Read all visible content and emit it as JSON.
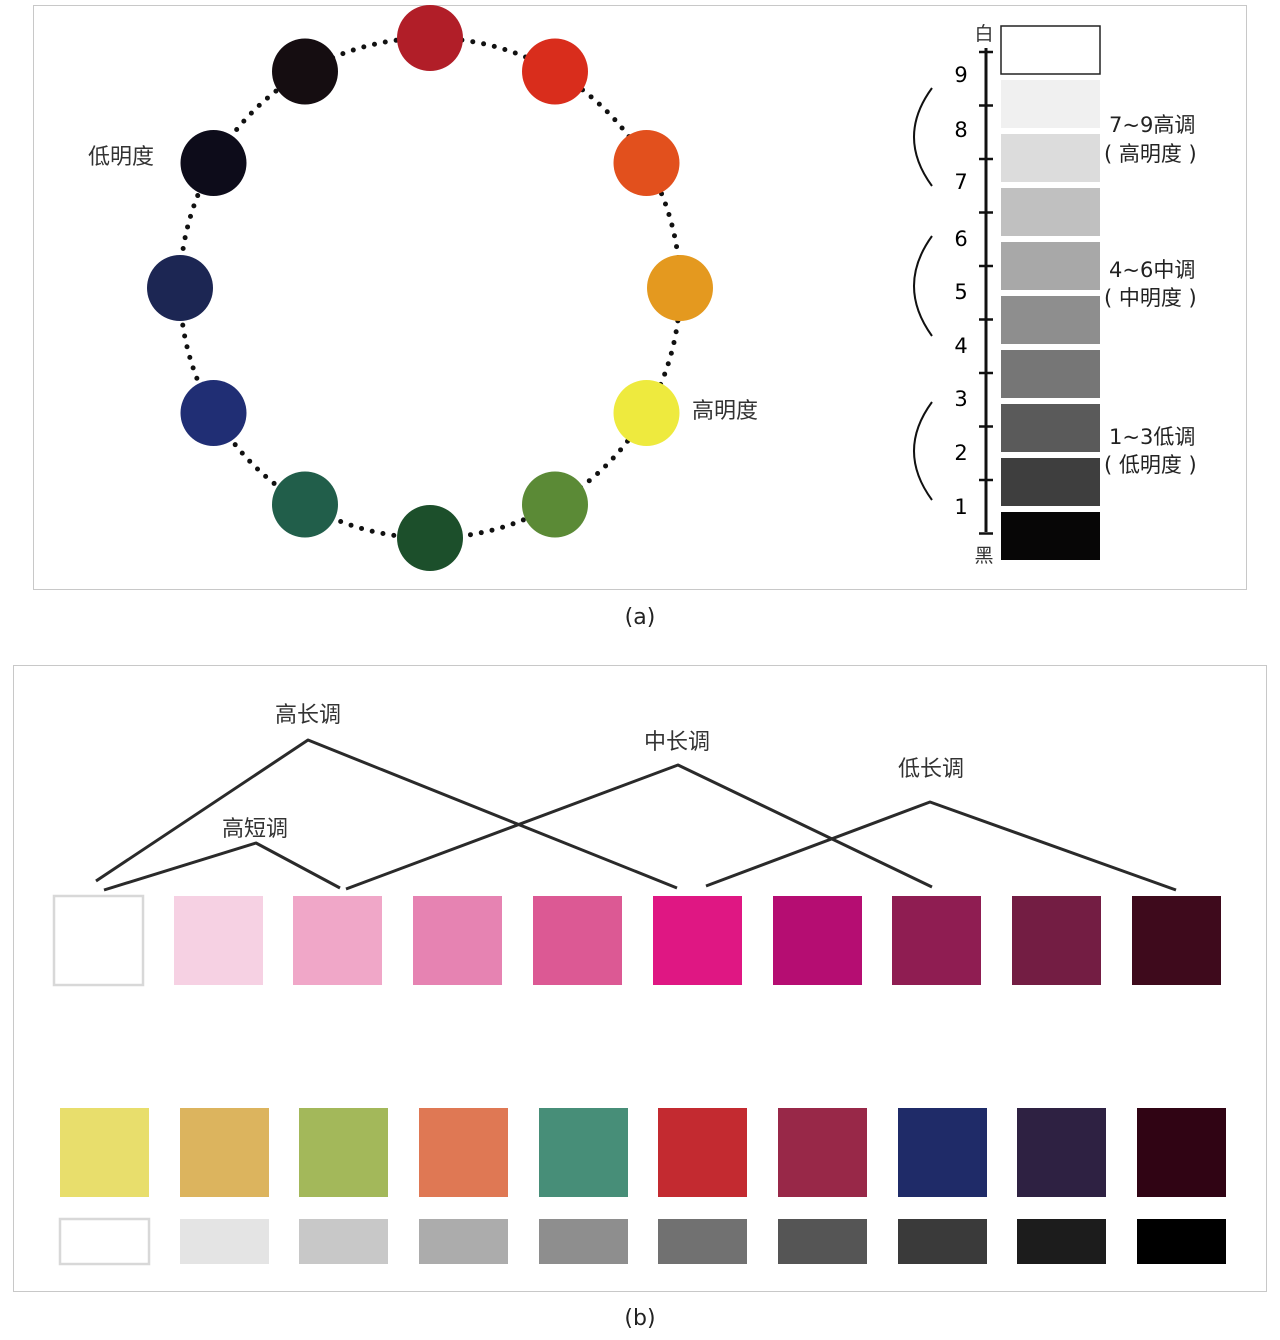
{
  "panel_a": {
    "caption": "(a)",
    "wheel": {
      "colors": [
        "#b11e28",
        "#d92d1c",
        "#e2501d",
        "#e4991f",
        "#eeea3e",
        "#5b8a36",
        "#1c4f2b",
        "#215e4a",
        "#202e74",
        "#1c2653",
        "#0d0c1a",
        "#150d11"
      ],
      "label_low": "低明度",
      "label_high": "高明度"
    },
    "scale": {
      "top_label": "白",
      "bottom_label": "黑",
      "numbers": [
        "9",
        "8",
        "7",
        "6",
        "5",
        "4",
        "3",
        "2",
        "1"
      ],
      "swatches": [
        "#ffffff",
        "#f0f0f0",
        "#dcdcdc",
        "#c0c0c0",
        "#a8a8a8",
        "#8e8e8e",
        "#767676",
        "#5a5a5a",
        "#3e3e3e",
        "#070606"
      ],
      "groups": [
        {
          "line1": "7~9高调",
          "line2": "( 高明度 )"
        },
        {
          "line1": "4~6中调",
          "line2": "( 中明度 )"
        },
        {
          "line1": "1~3低调",
          "line2": "( 低明度 )"
        }
      ]
    }
  },
  "panel_b": {
    "caption": "(b)",
    "tone_labels": {
      "high_long": "高长调",
      "high_short": "高短调",
      "mid_long": "中长调",
      "low_long": "低长调"
    },
    "pink_row": [
      "#ffffff",
      "#f6d1e3",
      "#f0a7c8",
      "#e683b2",
      "#dc5994",
      "#df1783",
      "#b50d72",
      "#8f1d52",
      "#731d43",
      "#3e0a1c"
    ],
    "color_row": [
      "#e8de6c",
      "#dcb45e",
      "#a3b85a",
      "#df7854",
      "#478e78",
      "#c32a30",
      "#982848",
      "#1f2b68",
      "#2e2142",
      "#300414"
    ],
    "gray_row": [
      "#ffffff",
      "#e4e4e4",
      "#c8c8c8",
      "#acacac",
      "#8e8e8e",
      "#717171",
      "#555555",
      "#3a3a3a",
      "#1c1c1c",
      "#000000"
    ]
  }
}
